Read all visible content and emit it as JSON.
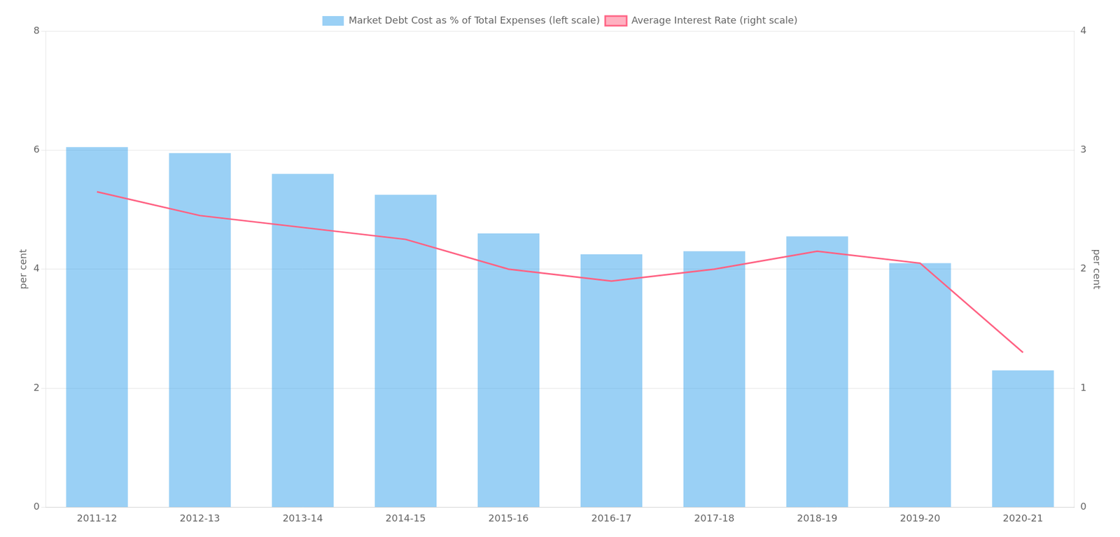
{
  "chart_data": {
    "type": "bar",
    "categories": [
      "2011-12",
      "2012-13",
      "2013-14",
      "2014-15",
      "2015-16",
      "2016-17",
      "2017-18",
      "2018-19",
      "2019-20",
      "2020-21"
    ],
    "series": [
      {
        "name": "Market Debt Cost as % of Total Expenses (left scale)",
        "values": [
          6.05,
          5.95,
          5.6,
          5.25,
          4.6,
          4.25,
          4.3,
          4.55,
          4.1,
          2.3
        ]
      },
      {
        "name": "Average Interest Rate (right scale)",
        "type": "line",
        "axis": "y2",
        "values": [
          2.65,
          2.45,
          2.35,
          2.25,
          2.0,
          1.9,
          2.0,
          2.15,
          2.05,
          1.3
        ]
      }
    ],
    "ylabel": "per cent",
    "y2label": "per cent",
    "ylim": [
      0,
      8
    ],
    "yticks": [
      0,
      2,
      4,
      6,
      8
    ],
    "y2lim": [
      0,
      4
    ],
    "y2ticks": [
      0,
      1,
      2,
      3,
      4
    ],
    "grid": true,
    "legend": "top"
  }
}
